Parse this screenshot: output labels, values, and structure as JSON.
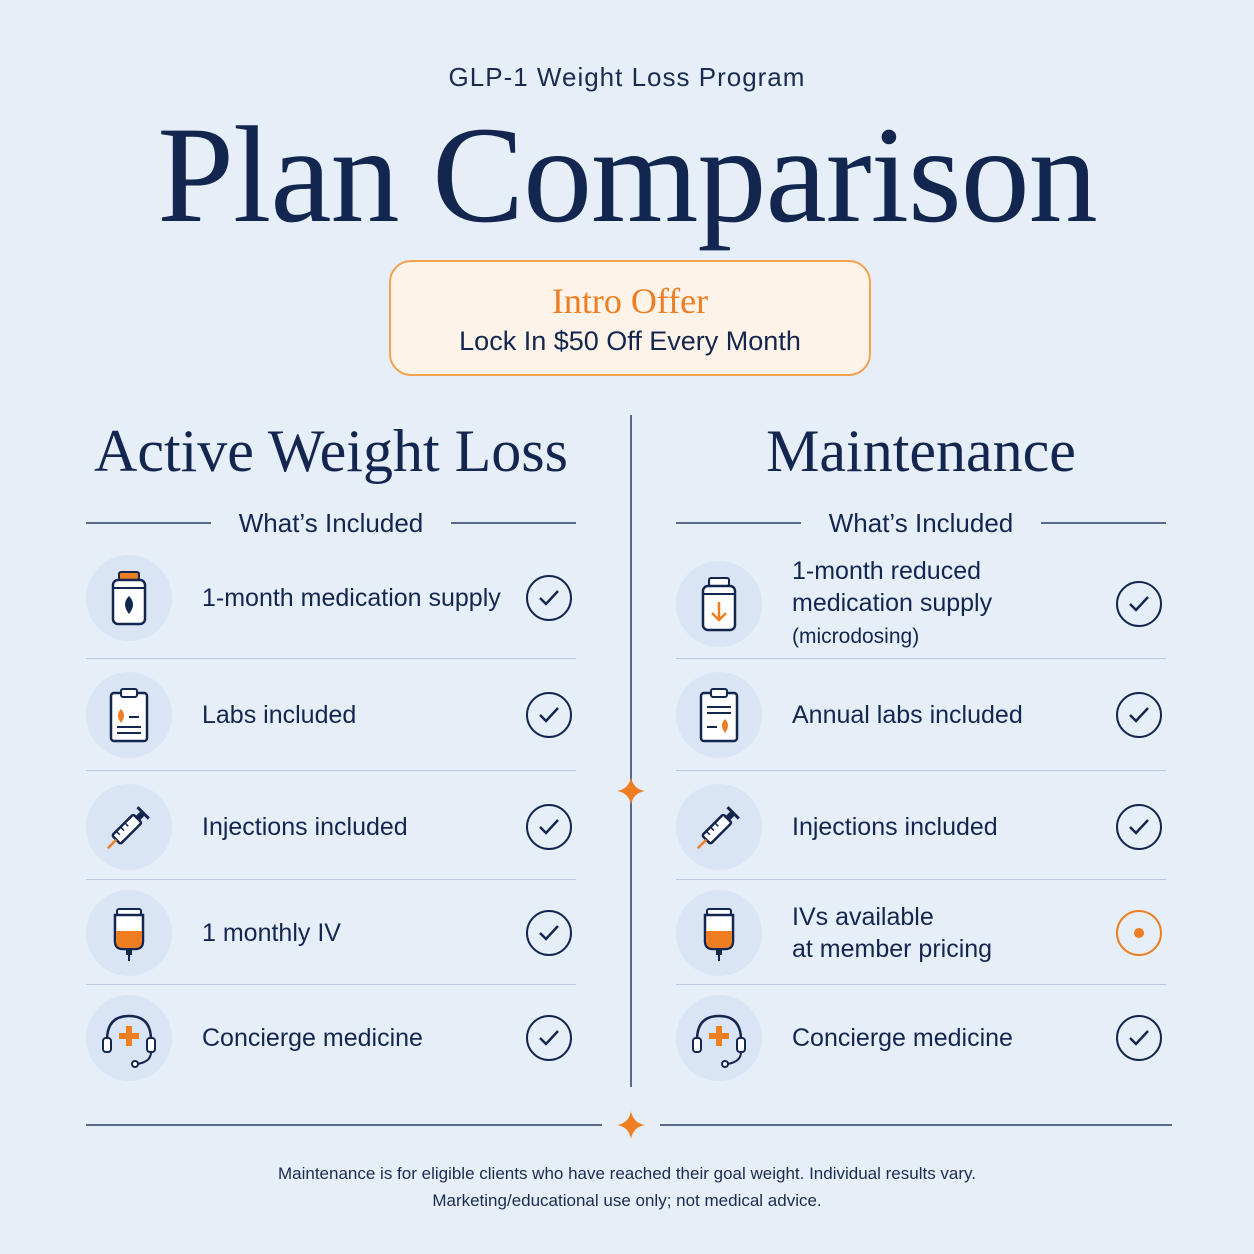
{
  "header": {
    "eyebrow": "GLP-1 Weight Loss Program",
    "title": "Plan Comparison"
  },
  "offer": {
    "title": "Intro Offer",
    "subtitle": "Lock In $50 Off Every Month"
  },
  "plans": [
    {
      "title": "Active Weight Loss",
      "section_label": "What’s Included",
      "items": [
        {
          "icon": "medication-bottle-icon",
          "label": "1-month medication supply",
          "label_small": "",
          "status": "included"
        },
        {
          "icon": "lab-clipboard-icon",
          "label": "Labs included",
          "label_small": "",
          "status": "included"
        },
        {
          "icon": "syringe-icon",
          "label": "Injections included",
          "label_small": "",
          "status": "included"
        },
        {
          "icon": "iv-bag-icon",
          "label": "1 monthly IV",
          "label_small": "",
          "status": "included"
        },
        {
          "icon": "headset-medical-icon",
          "label": "Concierge medicine",
          "label_small": "",
          "status": "included"
        }
      ]
    },
    {
      "title": "Maintenance",
      "section_label": "What’s Included",
      "items": [
        {
          "icon": "reduced-dose-bottle-icon",
          "label": "1-month reduced",
          "label_line2": "medication supply",
          "label_small": "(microdosing)",
          "status": "included"
        },
        {
          "icon": "lab-clipboard-icon",
          "label": "Annual labs included",
          "label_small": "",
          "status": "included"
        },
        {
          "icon": "syringe-icon",
          "label": "Injections included",
          "label_small": "",
          "status": "included"
        },
        {
          "icon": "iv-bag-icon",
          "label": "IVs available",
          "label_line2": "at member pricing",
          "label_small": "",
          "status": "partial"
        },
        {
          "icon": "headset-medical-icon",
          "label": "Concierge medicine",
          "label_small": "",
          "status": "included"
        }
      ]
    }
  ],
  "footer": {
    "line1": "Maintenance is for eligible clients who have reached their goal weight. Individual results vary.",
    "line2": "Marketing/educational use only; not medical advice."
  },
  "colors": {
    "navy": "#13264f",
    "orange": "#ef7d21",
    "background": "#e6eef8"
  }
}
